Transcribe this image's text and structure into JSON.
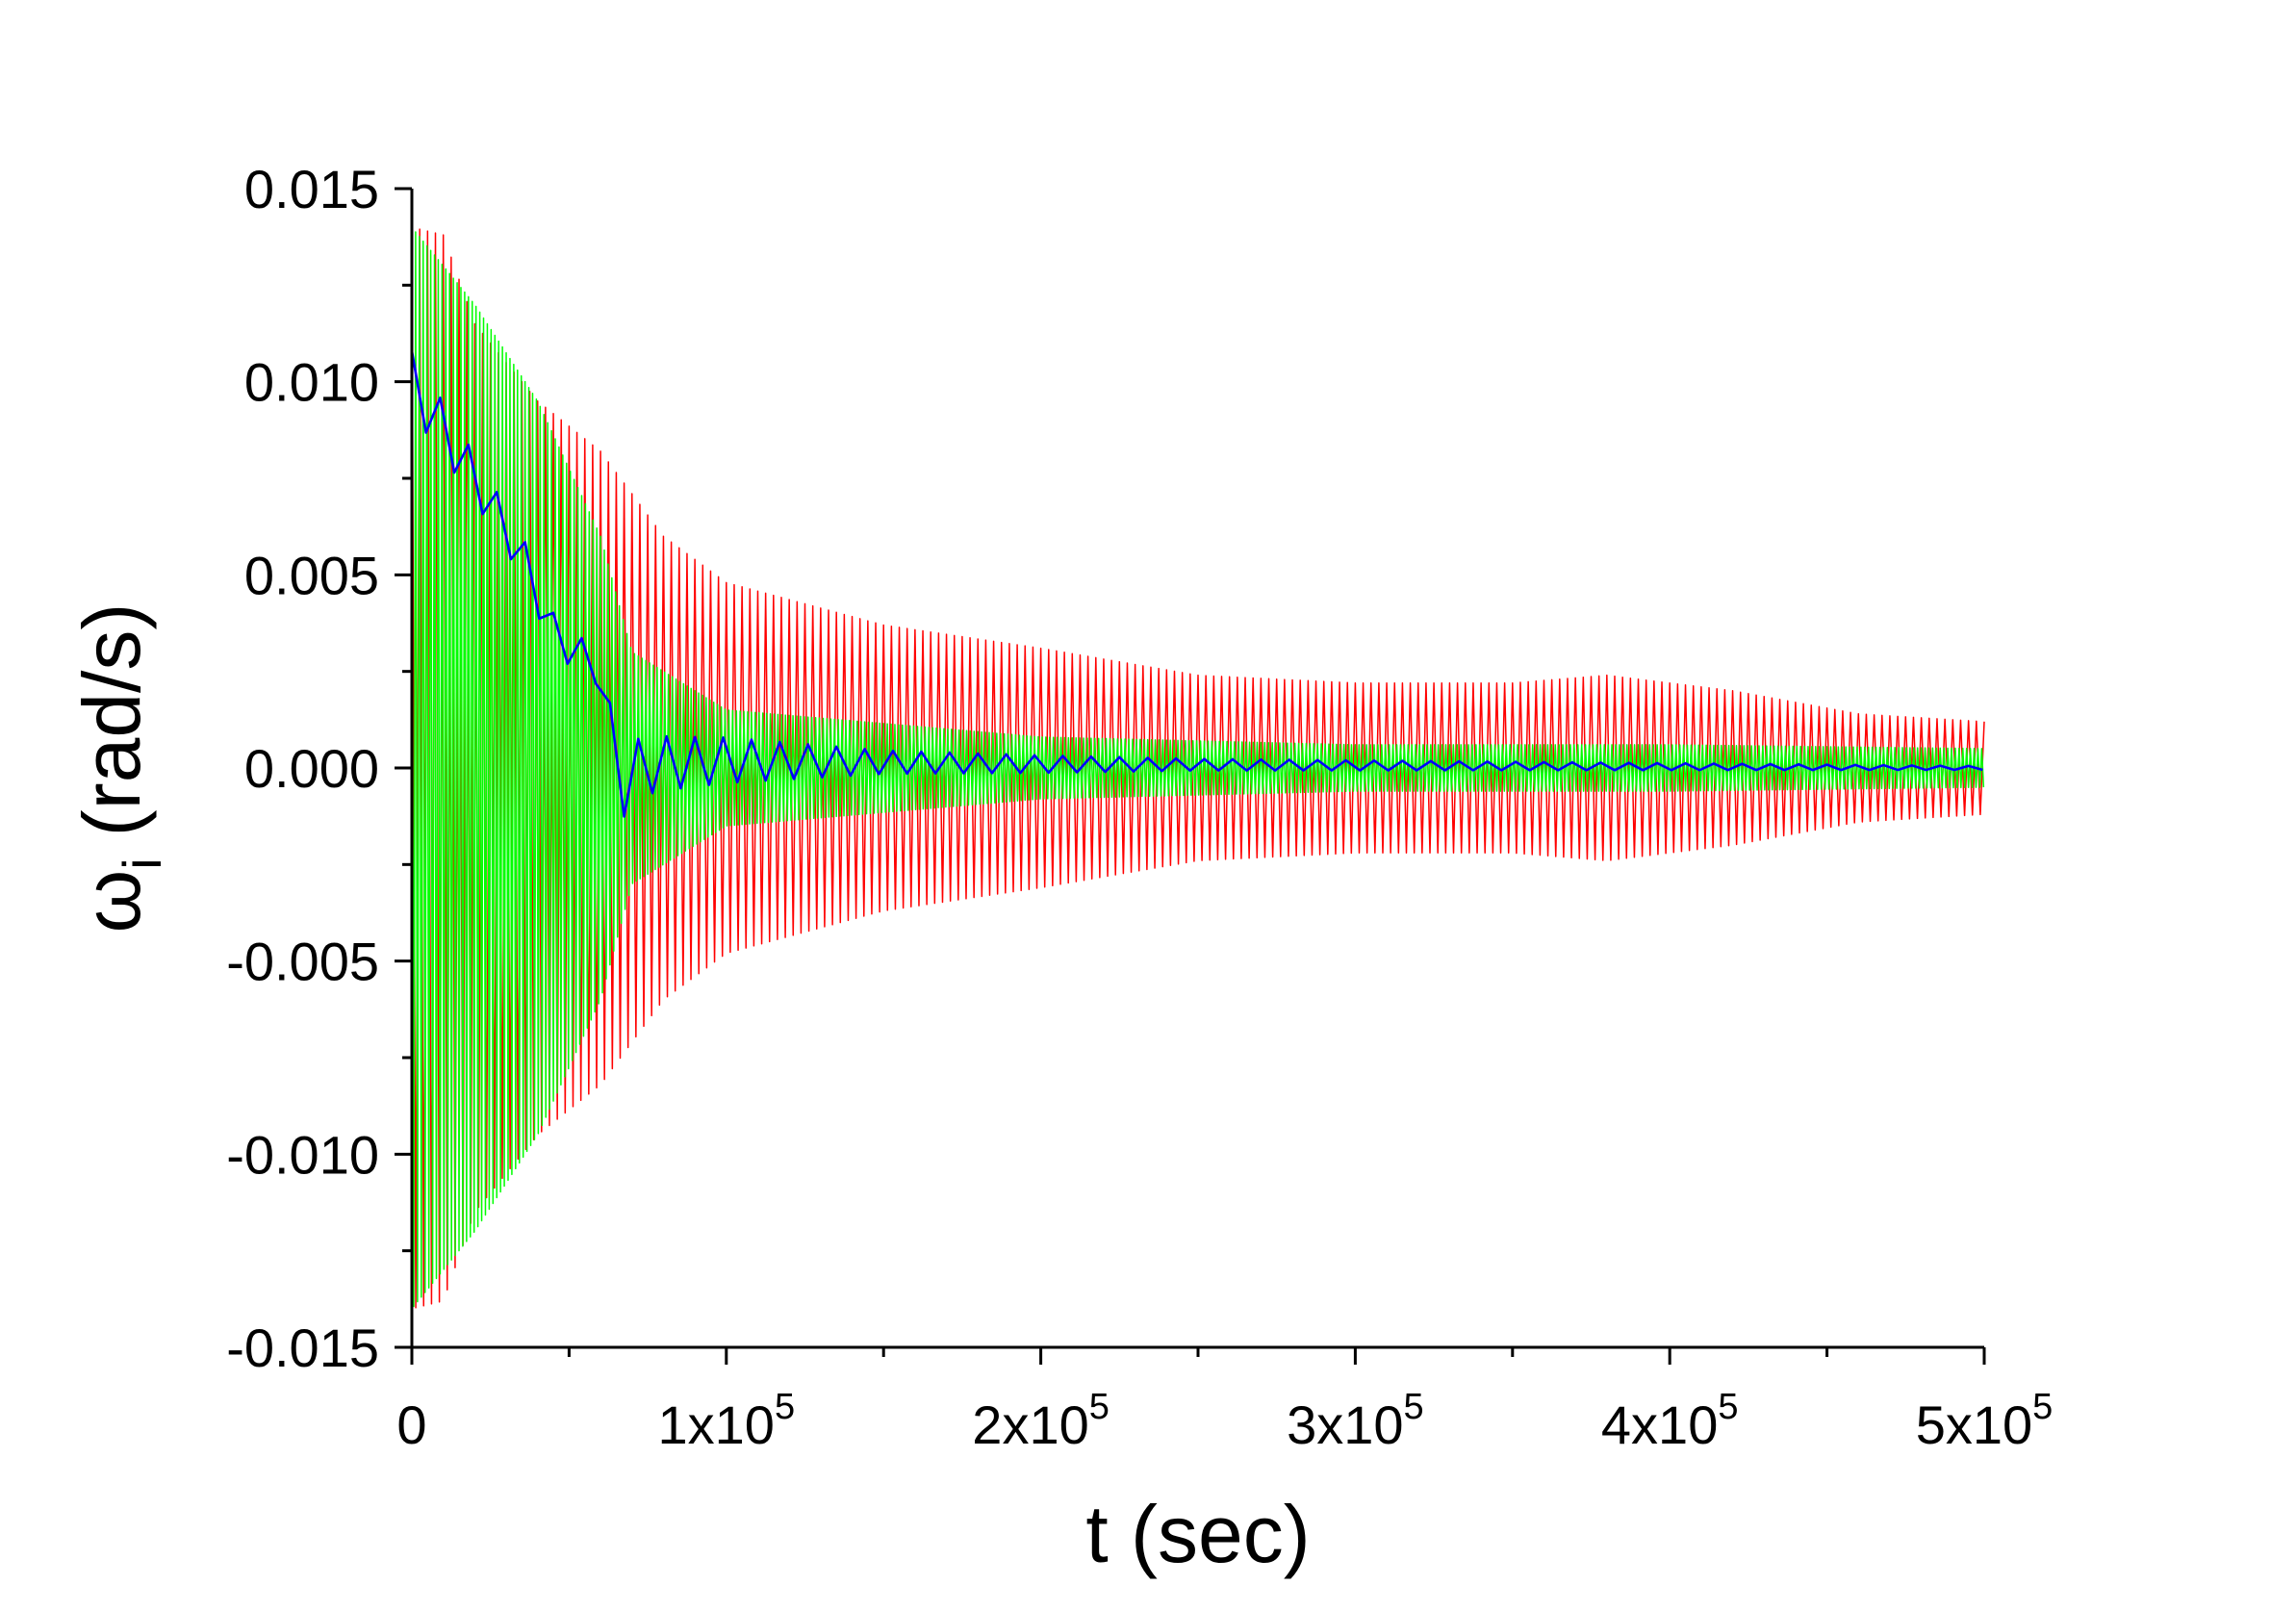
{
  "chart_data": {
    "type": "line",
    "title": "",
    "xlabel": "t (sec)",
    "ylabel": {
      "symbol": "ω",
      "subscript": "i",
      "unit": "(rad/s)"
    },
    "xlim": [
      0,
      500000
    ],
    "ylim": [
      -0.015,
      0.015
    ],
    "x_ticks": [
      {
        "value": 0,
        "label": "0"
      },
      {
        "value": 100000,
        "label": "1x10",
        "exp": "5"
      },
      {
        "value": 200000,
        "label": "2x10",
        "exp": "5"
      },
      {
        "value": 300000,
        "label": "3x10",
        "exp": "5"
      },
      {
        "value": 400000,
        "label": "4x10",
        "exp": "5"
      },
      {
        "value": 500000,
        "label": "5x10",
        "exp": "5"
      }
    ],
    "y_ticks": [
      {
        "value": 0.015,
        "label": "0.015"
      },
      {
        "value": 0.01,
        "label": "0.010"
      },
      {
        "value": 0.005,
        "label": "0.005"
      },
      {
        "value": 0.0,
        "label": "0.000"
      },
      {
        "value": -0.005,
        "label": "-0.005"
      },
      {
        "value": -0.01,
        "label": "-0.010"
      },
      {
        "value": -0.015,
        "label": "-0.015"
      }
    ],
    "grid": false,
    "series": [
      {
        "name": "red",
        "color": "#ff0000",
        "oscillation_period_s": 2500,
        "envelope": [
          [
            0,
            0.014
          ],
          [
            10000,
            0.0138
          ],
          [
            20000,
            0.0115
          ],
          [
            40000,
            0.0095
          ],
          [
            60000,
            0.0082
          ],
          [
            80000,
            0.006
          ],
          [
            100000,
            0.0048
          ],
          [
            150000,
            0.0037
          ],
          [
            200000,
            0.0031
          ],
          [
            250000,
            0.0024
          ],
          [
            300000,
            0.0022
          ],
          [
            350000,
            0.0022
          ],
          [
            380000,
            0.0024
          ],
          [
            420000,
            0.002
          ],
          [
            460000,
            0.0014
          ],
          [
            500000,
            0.0012
          ]
        ],
        "center": [
          [
            0,
            0.0
          ],
          [
            500000,
            0.0
          ]
        ]
      },
      {
        "name": "green",
        "color": "#00ff00",
        "oscillation_period_s": 1200,
        "envelope": [
          [
            0,
            0.014
          ],
          [
            20000,
            0.012
          ],
          [
            40000,
            0.0095
          ],
          [
            60000,
            0.006
          ],
          [
            70000,
            0.003
          ],
          [
            100000,
            0.0015
          ],
          [
            200000,
            0.0008
          ],
          [
            300000,
            0.0006
          ],
          [
            400000,
            0.0006
          ],
          [
            500000,
            0.0005
          ]
        ],
        "center": [
          [
            0,
            0.0
          ],
          [
            500000,
            0.0
          ]
        ]
      },
      {
        "name": "blue",
        "color": "#0000ff",
        "oscillation_period_s": 9000,
        "envelope": [
          [
            0,
            0.0008
          ],
          [
            20000,
            0.0006
          ],
          [
            50000,
            0.0005
          ],
          [
            60000,
            0.0004
          ],
          [
            62000,
            0.001
          ],
          [
            80000,
            0.0007
          ],
          [
            150000,
            0.0003
          ],
          [
            250000,
            0.00015
          ],
          [
            500000,
            5e-05
          ]
        ],
        "center": [
          [
            0,
            0.01
          ],
          [
            20000,
            0.0075
          ],
          [
            35000,
            0.0055
          ],
          [
            45000,
            0.0035
          ],
          [
            60000,
            0.0025
          ],
          [
            65000,
            -0.0005
          ],
          [
            75000,
            0.0001
          ],
          [
            100000,
            0.0002
          ],
          [
            200000,
            0.0001
          ],
          [
            500000,
            0.0
          ]
        ]
      }
    ]
  }
}
